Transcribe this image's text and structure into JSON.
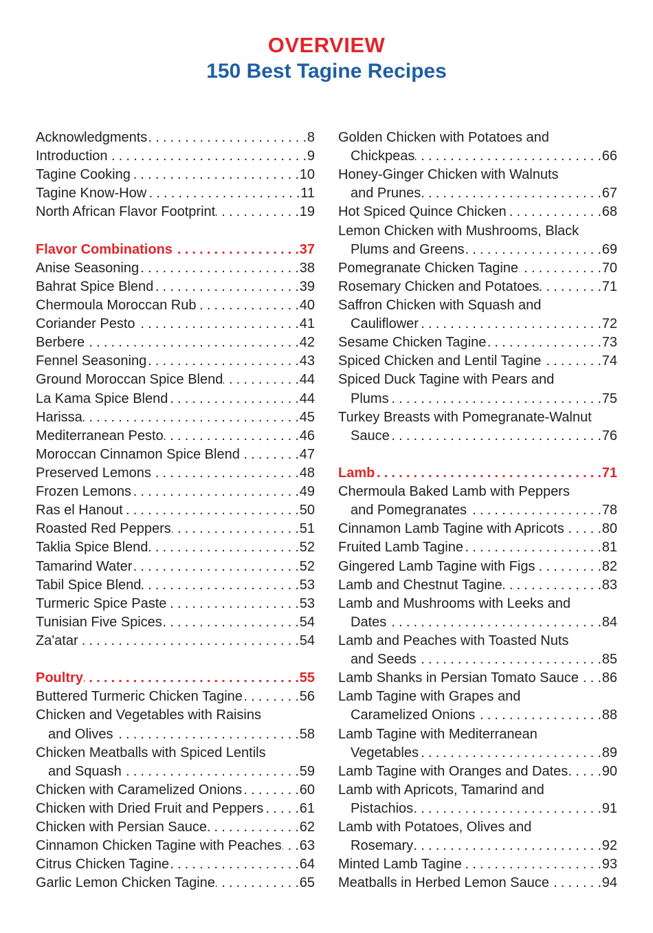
{
  "header": {
    "kicker": "OVERVIEW",
    "title": "150 Best Tagine Recipes"
  },
  "colors": {
    "kicker": "#e0262b",
    "title": "#1f5fa3",
    "section_heading": "#e0262b",
    "text": "#231f20"
  },
  "columns": [
    {
      "sections": [
        {
          "heading": null,
          "entries": [
            {
              "lines": [
                "Acknowledgments"
              ],
              "page": "8"
            },
            {
              "lines": [
                "Introduction"
              ],
              "page": "9"
            },
            {
              "lines": [
                "Tagine Cooking"
              ],
              "page": "10"
            },
            {
              "lines": [
                "Tagine Know-How"
              ],
              "page": "11"
            },
            {
              "lines": [
                "North African Flavor Footprint"
              ],
              "page": "19"
            }
          ]
        },
        {
          "heading": {
            "label": "Flavor Combinations",
            "page": "37"
          },
          "entries": [
            {
              "lines": [
                "Anise Seasoning"
              ],
              "page": "38"
            },
            {
              "lines": [
                "Bahrat Spice Blend"
              ],
              "page": "39"
            },
            {
              "lines": [
                "Chermoula Moroccan Rub"
              ],
              "page": "40"
            },
            {
              "lines": [
                "Coriander Pesto"
              ],
              "page": "41"
            },
            {
              "lines": [
                "Berbere"
              ],
              "page": "42"
            },
            {
              "lines": [
                "Fennel Seasoning"
              ],
              "page": "43"
            },
            {
              "lines": [
                "Ground Moroccan Spice Blend"
              ],
              "page": "44"
            },
            {
              "lines": [
                "La Kama Spice Blend"
              ],
              "page": "44"
            },
            {
              "lines": [
                "Harissa"
              ],
              "page": "45"
            },
            {
              "lines": [
                "Mediterranean Pesto"
              ],
              "page": "46"
            },
            {
              "lines": [
                "Moroccan Cinnamon Spice Blend"
              ],
              "page": "47"
            },
            {
              "lines": [
                "Preserved Lemons"
              ],
              "page": "48"
            },
            {
              "lines": [
                "Frozen Lemons"
              ],
              "page": "49"
            },
            {
              "lines": [
                "Ras el Hanout"
              ],
              "page": "50"
            },
            {
              "lines": [
                "Roasted Red Peppers"
              ],
              "page": "51"
            },
            {
              "lines": [
                "Taklia Spice Blend"
              ],
              "page": "52"
            },
            {
              "lines": [
                "Tamarind Water"
              ],
              "page": "52"
            },
            {
              "lines": [
                "Tabil Spice Blend"
              ],
              "page": "53"
            },
            {
              "lines": [
                "Turmeric Spice Paste"
              ],
              "page": "53"
            },
            {
              "lines": [
                "Tunisian Five Spices"
              ],
              "page": "54"
            },
            {
              "lines": [
                "Za'atar"
              ],
              "page": "54"
            }
          ]
        },
        {
          "heading": {
            "label": "Poultry",
            "page": "55"
          },
          "entries": [
            {
              "lines": [
                "Buttered Turmeric Chicken Tagine"
              ],
              "page": "56"
            },
            {
              "lines": [
                "Chicken and Vegetables with Raisins",
                "and Olives"
              ],
              "page": "58"
            },
            {
              "lines": [
                "Chicken Meatballs with Spiced Lentils",
                "and Squash"
              ],
              "page": "59"
            },
            {
              "lines": [
                "Chicken with Caramelized Onions"
              ],
              "page": "60"
            },
            {
              "lines": [
                "Chicken with Dried Fruit and Peppers"
              ],
              "page": "61"
            },
            {
              "lines": [
                "Chicken with Persian Sauce"
              ],
              "page": "62"
            },
            {
              "lines": [
                "Cinnamon Chicken Tagine with Peaches"
              ],
              "page": "63"
            },
            {
              "lines": [
                "Citrus Chicken Tagine"
              ],
              "page": "64"
            },
            {
              "lines": [
                "Garlic Lemon Chicken Tagine"
              ],
              "page": "65"
            }
          ]
        }
      ]
    },
    {
      "sections": [
        {
          "heading": null,
          "entries": [
            {
              "lines": [
                "Golden Chicken with Potatoes and",
                "Chickpeas"
              ],
              "page": "66"
            },
            {
              "lines": [
                "Honey-Ginger Chicken with Walnuts",
                "and Prunes"
              ],
              "page": "67"
            },
            {
              "lines": [
                "Hot Spiced Quince Chicken"
              ],
              "page": "68"
            },
            {
              "lines": [
                "Lemon Chicken with Mushrooms, Black",
                "Plums and Greens"
              ],
              "page": "69"
            },
            {
              "lines": [
                "Pomegranate Chicken Tagine"
              ],
              "page": "70"
            },
            {
              "lines": [
                "Rosemary Chicken and Potatoes"
              ],
              "page": "71"
            },
            {
              "lines": [
                "Saffron Chicken with Squash and",
                "Cauliflower"
              ],
              "page": "72"
            },
            {
              "lines": [
                "Sesame Chicken Tagine"
              ],
              "page": "73"
            },
            {
              "lines": [
                "Spiced Chicken and Lentil Tagine"
              ],
              "page": "74"
            },
            {
              "lines": [
                "Spiced Duck Tagine with Pears and",
                "Plums"
              ],
              "page": "75"
            },
            {
              "lines": [
                "Turkey Breasts with Pomegranate-Walnut",
                "Sauce"
              ],
              "page": "76"
            }
          ]
        },
        {
          "heading": {
            "label": "Lamb",
            "page": "71"
          },
          "entries": [
            {
              "lines": [
                "Chermoula Baked Lamb with Peppers",
                "and Pomegranates"
              ],
              "page": "78"
            },
            {
              "lines": [
                "Cinnamon Lamb Tagine with Apricots"
              ],
              "page": "80"
            },
            {
              "lines": [
                "Fruited Lamb Tagine"
              ],
              "page": "81"
            },
            {
              "lines": [
                "Gingered Lamb Tagine with Figs"
              ],
              "page": "82"
            },
            {
              "lines": [
                "Lamb and Chestnut Tagine"
              ],
              "page": "83"
            },
            {
              "lines": [
                "Lamb and Mushrooms with Leeks and",
                "Dates"
              ],
              "page": "84"
            },
            {
              "lines": [
                "Lamb and Peaches with Toasted Nuts",
                "and Seeds"
              ],
              "page": "85"
            },
            {
              "lines": [
                "Lamb Shanks in Persian Tomato Sauce"
              ],
              "page": "86"
            },
            {
              "lines": [
                "Lamb Tagine with Grapes and",
                "Caramelized Onions"
              ],
              "page": "88"
            },
            {
              "lines": [
                "Lamb Tagine with Mediterranean",
                "Vegetables"
              ],
              "page": "89"
            },
            {
              "lines": [
                "Lamb Tagine with Oranges and Dates"
              ],
              "page": "90"
            },
            {
              "lines": [
                "Lamb with Apricots, Tamarind and",
                "Pistachios"
              ],
              "page": "91"
            },
            {
              "lines": [
                "Lamb with Potatoes, Olives and",
                "Rosemary"
              ],
              "page": "92"
            },
            {
              "lines": [
                "Minted Lamb Tagine"
              ],
              "page": "93"
            },
            {
              "lines": [
                "Meatballs in Herbed Lemon Sauce"
              ],
              "page": "94"
            }
          ]
        }
      ]
    }
  ]
}
